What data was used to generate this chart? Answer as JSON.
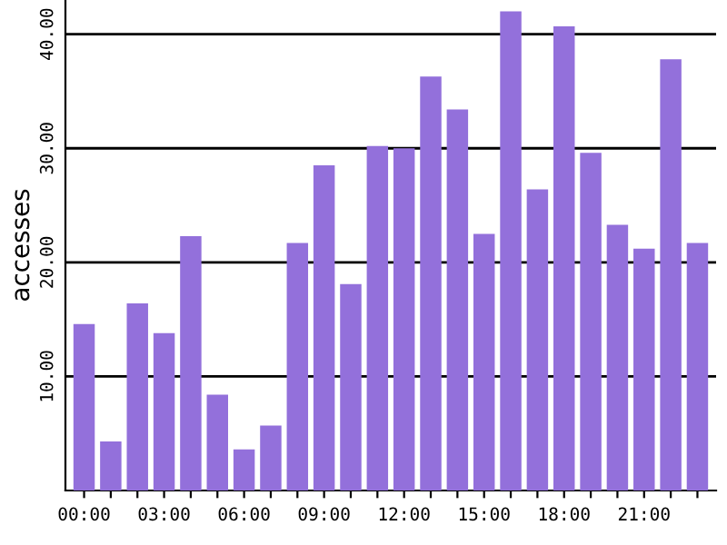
{
  "chart_data": {
    "type": "bar",
    "ylabel": "accesses",
    "categories": [
      "00:00",
      null,
      null,
      "03:00",
      null,
      null,
      "06:00",
      null,
      null,
      "09:00",
      null,
      null,
      "12:00",
      null,
      null,
      "15:00",
      null,
      null,
      "18:00",
      null,
      null,
      "21:00",
      null,
      null
    ],
    "values": [
      14.6,
      4.3,
      16.4,
      13.8,
      22.3,
      8.4,
      3.6,
      5.7,
      21.7,
      28.5,
      18.1,
      30.2,
      30.0,
      36.3,
      33.4,
      22.5,
      42.0,
      26.4,
      40.7,
      29.6,
      23.3,
      21.2,
      37.8,
      21.7
    ],
    "color": "#9370db",
    "ylim": [
      0,
      43
    ],
    "yticks": [
      {
        "value": 10,
        "label": "10.00"
      },
      {
        "value": 20,
        "label": "20.00"
      },
      {
        "value": 30,
        "label": "30.00"
      },
      {
        "value": 40,
        "label": "40.00"
      }
    ],
    "grid": "y"
  }
}
